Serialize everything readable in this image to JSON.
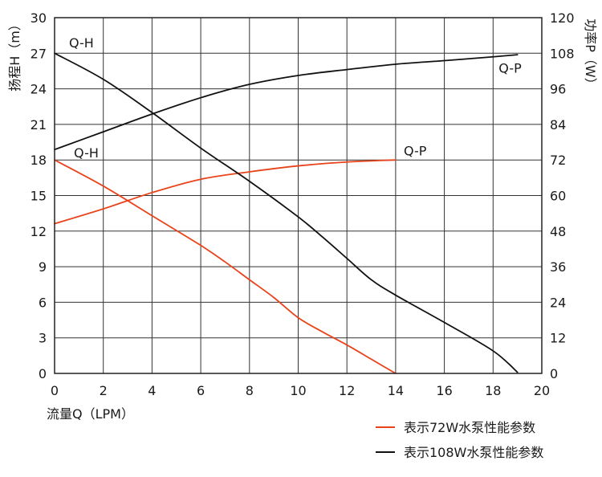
{
  "chart_data": {
    "type": "line",
    "xlabel": "流量Q（LPM）",
    "ylabel_left": "扬程H（m）",
    "ylabel_right": "功率P（W）",
    "xlim": [
      0,
      20
    ],
    "xticks": [
      "0",
      "2",
      "4",
      "6",
      "8",
      "10",
      "12",
      "14",
      "16",
      "18",
      "20"
    ],
    "ylim_left": [
      0,
      30
    ],
    "yticks_left": [
      "0",
      "3",
      "6",
      "9",
      "12",
      "15",
      "18",
      "21",
      "24",
      "27",
      "30"
    ],
    "ylim_right": [
      0,
      120
    ],
    "yticks_right": [
      "0",
      "12",
      "24",
      "36",
      "48",
      "60",
      "72",
      "84",
      "96",
      "108",
      "120"
    ],
    "grid": true,
    "legend_position": "bottom-right",
    "legend": [
      {
        "label": "表示72W水泵性能参数",
        "color": "#e8431a"
      },
      {
        "label": "表示108W水泵性能参数",
        "color": "#111111"
      }
    ],
    "series": [
      {
        "curve": "Q-H",
        "axis": "left",
        "color": "#e8431a",
        "x": [
          0,
          2,
          4,
          6,
          7,
          8,
          9,
          10,
          11,
          12,
          13,
          14
        ],
        "y": [
          18,
          15.8,
          13.3,
          10.8,
          9.4,
          7.9,
          6.4,
          4.7,
          3.5,
          2.4,
          1.2,
          0
        ]
      },
      {
        "curve": "Q-P",
        "axis": "right",
        "color": "#e8431a",
        "x": [
          0,
          2,
          4,
          6,
          8,
          10,
          12,
          14
        ],
        "y": [
          50.5,
          55.5,
          61,
          65.5,
          68,
          70,
          71.3,
          72
        ]
      },
      {
        "curve": "Q-H",
        "axis": "left",
        "color": "#111111",
        "x": [
          0,
          2,
          4,
          6,
          8,
          10,
          11,
          12,
          13,
          14,
          16,
          18,
          19
        ],
        "y": [
          27,
          24.8,
          22,
          19,
          16.2,
          13.2,
          11.5,
          9.7,
          7.9,
          6.6,
          4.3,
          1.9,
          0.1
        ]
      },
      {
        "curve": "Q-P",
        "axis": "right",
        "color": "#111111",
        "x": [
          0,
          2,
          4,
          6,
          8,
          10,
          12,
          14,
          16,
          18,
          19
        ],
        "y": [
          75.5,
          81.5,
          87.5,
          93,
          97.5,
          100.5,
          102.5,
          104.3,
          105.5,
          106.8,
          107.5
        ]
      }
    ],
    "annotations": [
      {
        "text": "Q-H",
        "x": 1.1,
        "y": 27.5,
        "axis": "left"
      },
      {
        "text": "Q-P",
        "x": 18.7,
        "y": 101.5,
        "axis": "right"
      },
      {
        "text": "Q-H",
        "x": 1.3,
        "y": 18.2,
        "axis": "left"
      },
      {
        "text": "Q-P",
        "x": 14.8,
        "y": 73.5,
        "axis": "right"
      }
    ]
  }
}
